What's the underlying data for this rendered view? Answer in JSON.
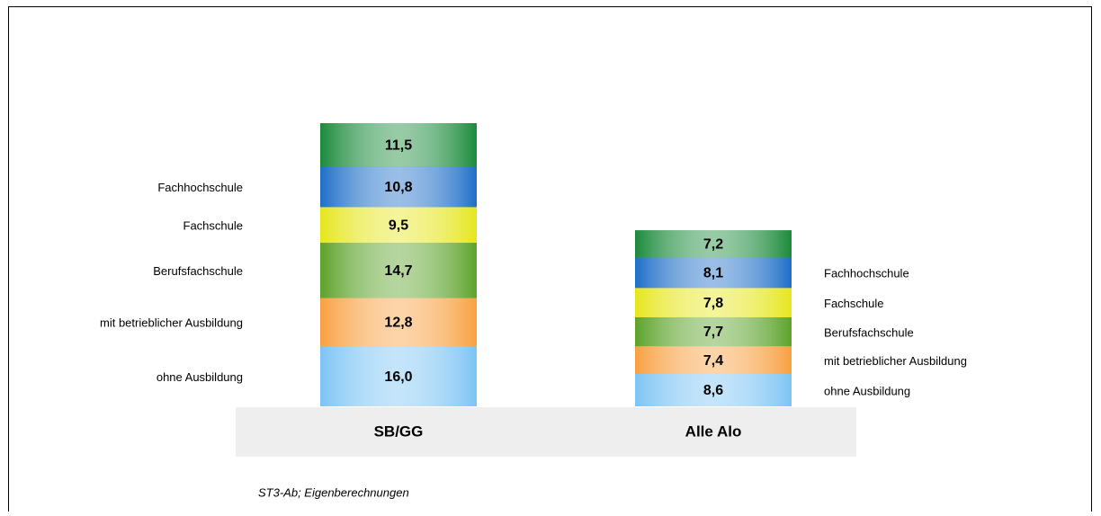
{
  "chart_data": {
    "type": "stacked_bar",
    "categories": [
      "SB/GG",
      "Alle Alo"
    ],
    "series": [
      {
        "name": "ohne Ausbildung",
        "color": "#7cc4f4",
        "values": [
          16.0,
          8.6
        ],
        "value_labels": [
          "16,0",
          "8,6"
        ]
      },
      {
        "name": "mit betrieblicher Ausbildung",
        "color": "#f8a040",
        "values": [
          12.8,
          7.4
        ],
        "value_labels": [
          "12,8",
          "7,4"
        ]
      },
      {
        "name": "Berufsfachschule",
        "color": "#5ca22a",
        "values": [
          14.7,
          7.7
        ],
        "value_labels": [
          "14,7",
          "7,7"
        ]
      },
      {
        "name": "Fachschule",
        "color": "#e6e61e",
        "values": [
          9.5,
          7.8
        ],
        "value_labels": [
          "9,5",
          "7,8"
        ]
      },
      {
        "name": "Fachhochschule",
        "color": "#1e6ec8",
        "values": [
          10.8,
          8.1
        ],
        "value_labels": [
          "10,8",
          "8,1"
        ]
      },
      {
        "name": null,
        "color": "#1a8a3a",
        "values": [
          11.5,
          7.2
        ],
        "value_labels": [
          "11,5",
          "7,2"
        ]
      }
    ],
    "source": "ST3-Ab; Eigenberechnungen"
  }
}
